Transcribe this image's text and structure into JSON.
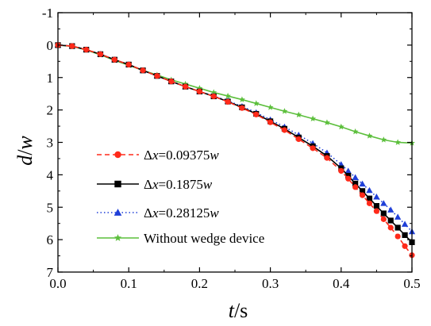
{
  "chart_data": {
    "type": "line",
    "xlabel": "t/s",
    "ylabel": "d/w",
    "xlim": [
      0,
      0.5
    ],
    "ylim": [
      -1,
      7
    ],
    "y_inverted": true,
    "x_ticks": [
      "0.0",
      "0.1",
      "0.2",
      "0.3",
      "0.4",
      "0.5"
    ],
    "y_ticks": [
      "-1",
      "0",
      "1",
      "2",
      "3",
      "4",
      "5",
      "6",
      "7"
    ],
    "grid": false,
    "legend_position": "bottom-left",
    "series": [
      {
        "name": "Δx=0.09375w",
        "color": "#ff2a1a",
        "line_style": "dashed",
        "marker": "circle",
        "x": [
          0,
          0.02,
          0.04,
          0.06,
          0.08,
          0.1,
          0.12,
          0.14,
          0.16,
          0.18,
          0.2,
          0.22,
          0.24,
          0.26,
          0.28,
          0.3,
          0.32,
          0.34,
          0.36,
          0.38,
          0.4,
          0.41,
          0.42,
          0.43,
          0.44,
          0.45,
          0.46,
          0.47,
          0.48,
          0.49,
          0.5
        ],
        "y": [
          0,
          0.03,
          0.14,
          0.28,
          0.45,
          0.6,
          0.78,
          0.95,
          1.12,
          1.28,
          1.43,
          1.58,
          1.75,
          1.94,
          2.14,
          2.38,
          2.62,
          2.9,
          3.18,
          3.48,
          3.88,
          4.12,
          4.38,
          4.63,
          4.88,
          5.12,
          5.37,
          5.63,
          5.9,
          6.2,
          6.48
        ]
      },
      {
        "name": "Δx=0.1875w",
        "color": "#000000",
        "line_style": "solid",
        "marker": "square",
        "x": [
          0,
          0.02,
          0.04,
          0.06,
          0.08,
          0.1,
          0.12,
          0.14,
          0.16,
          0.18,
          0.2,
          0.22,
          0.24,
          0.26,
          0.28,
          0.3,
          0.32,
          0.34,
          0.36,
          0.38,
          0.4,
          0.41,
          0.42,
          0.43,
          0.44,
          0.45,
          0.46,
          0.47,
          0.48,
          0.49,
          0.5
        ],
        "y": [
          0,
          0.03,
          0.14,
          0.28,
          0.45,
          0.6,
          0.78,
          0.95,
          1.12,
          1.28,
          1.43,
          1.58,
          1.74,
          1.92,
          2.12,
          2.35,
          2.58,
          2.85,
          3.12,
          3.42,
          3.8,
          4.03,
          4.27,
          4.5,
          4.73,
          4.96,
          5.19,
          5.41,
          5.63,
          5.86,
          6.08
        ]
      },
      {
        "name": "Δx=0.28125w",
        "color": "#1f3fd8",
        "line_style": "dotted",
        "marker": "triangle",
        "x": [
          0,
          0.02,
          0.04,
          0.06,
          0.08,
          0.1,
          0.12,
          0.14,
          0.16,
          0.18,
          0.2,
          0.22,
          0.24,
          0.26,
          0.28,
          0.3,
          0.32,
          0.34,
          0.36,
          0.38,
          0.4,
          0.41,
          0.42,
          0.43,
          0.44,
          0.45,
          0.46,
          0.47,
          0.48,
          0.49,
          0.5
        ],
        "y": [
          0,
          0.03,
          0.14,
          0.28,
          0.45,
          0.6,
          0.78,
          0.95,
          1.12,
          1.28,
          1.43,
          1.57,
          1.72,
          1.89,
          2.08,
          2.3,
          2.52,
          2.77,
          3.03,
          3.32,
          3.68,
          3.88,
          4.08,
          4.28,
          4.48,
          4.68,
          4.88,
          5.08,
          5.3,
          5.52,
          5.75
        ]
      },
      {
        "name": "Without wedge device",
        "color": "#5cbf3c",
        "line_style": "solid",
        "marker": "star",
        "x": [
          0,
          0.02,
          0.04,
          0.06,
          0.08,
          0.1,
          0.12,
          0.14,
          0.16,
          0.18,
          0.2,
          0.22,
          0.24,
          0.26,
          0.28,
          0.3,
          0.32,
          0.34,
          0.36,
          0.38,
          0.4,
          0.42,
          0.44,
          0.46,
          0.48,
          0.5
        ],
        "y": [
          0,
          0.04,
          0.15,
          0.3,
          0.47,
          0.62,
          0.78,
          0.92,
          1.07,
          1.2,
          1.33,
          1.46,
          1.57,
          1.68,
          1.8,
          1.92,
          2.04,
          2.15,
          2.27,
          2.39,
          2.52,
          2.67,
          2.8,
          2.92,
          3.0,
          3.02
        ]
      }
    ]
  }
}
